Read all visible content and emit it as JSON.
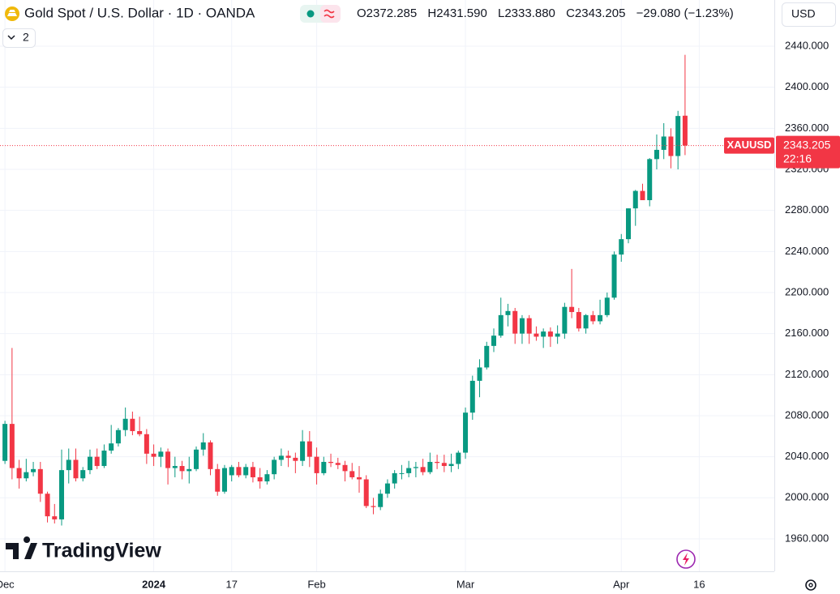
{
  "toolbar": {
    "symbol_title": "Gold Spot / U.S. Dollar · 1D · OANDA",
    "open": "O2372.285",
    "high": "H2431.590",
    "low": "L2333.880",
    "close": "C2343.205",
    "change": "−29.080 (−1.23%)",
    "indicators_count": "2",
    "currency": "USD"
  },
  "chart_data": {
    "type": "candlestick",
    "open": [
      2036,
      2072,
      2029,
      2019,
      2025,
      2028,
      2004,
      1982,
      1979,
      2027,
      2037,
      2019,
      2027,
      2040,
      2031,
      2046,
      2053,
      2066,
      2077,
      2065,
      2062,
      2043,
      2040,
      2045,
      2029,
      2031,
      2026,
      2028,
      2047,
      2054,
      2028,
      2006,
      2022,
      2030,
      2022,
      2030,
      2020,
      2016,
      2023,
      2037,
      2041,
      2039,
      2036,
      2055,
      2040,
      2024,
      2035,
      2034,
      2032,
      2026,
      2020,
      2018,
      1992,
      1991,
      2004,
      2014,
      2024,
      2024,
      2029,
      2030,
      2025,
      2035,
      2034,
      2031,
      2033,
      2044,
      2083,
      2114,
      2127,
      2148,
      2158,
      2178,
      2182,
      2160,
      2175,
      2160,
      2157,
      2162,
      2157,
      2160,
      2186,
      2181,
      2165,
      2178,
      2172,
      2178,
      2195,
      2237,
      2252,
      2282,
      2299,
      2290,
      2330,
      2339,
      2352,
      2333,
      2372.285
    ],
    "high": [
      2075,
      2146,
      2037,
      2038,
      2035,
      2035,
      2006,
      1994,
      2047,
      2048,
      2048,
      2030,
      2047,
      2048,
      2052,
      2071,
      2068,
      2088,
      2084,
      2079,
      2067,
      2052,
      2049,
      2048,
      2040,
      2036,
      2040,
      2050,
      2063,
      2056,
      2033,
      2032,
      2032,
      2035,
      2033,
      2035,
      2029,
      2027,
      2040,
      2048,
      2046,
      2044,
      2066,
      2065,
      2049,
      2040,
      2043,
      2039,
      2036,
      2034,
      2031,
      2022,
      2000,
      2008,
      2018,
      2027,
      2032,
      2036,
      2035,
      2038,
      2044,
      2042,
      2042,
      2043,
      2046,
      2088,
      2119,
      2135,
      2152,
      2165,
      2195,
      2189,
      2185,
      2178,
      2178,
      2167,
      2165,
      2166,
      2168,
      2190,
      2223,
      2185,
      2179,
      2182,
      2193,
      2200,
      2240,
      2257,
      2282,
      2300,
      2306,
      2331,
      2354,
      2365,
      2360,
      2377,
      2431.59
    ],
    "low": [
      2033,
      2018,
      2009,
      2016,
      2021,
      1996,
      1976,
      1975,
      1973,
      2014,
      2016,
      2016,
      2023,
      2028,
      2029,
      2043,
      2050,
      2060,
      2061,
      2060,
      2033,
      2031,
      2030,
      2013,
      2020,
      2018,
      2014,
      2026,
      2041,
      2022,
      2002,
      2004,
      2016,
      2020,
      2019,
      2015,
      2009,
      2013,
      2018,
      2031,
      2030,
      2024,
      2031,
      2030,
      2013,
      2022,
      2030,
      2028,
      2016,
      2018,
      2005,
      1990,
      1984,
      1988,
      2000,
      2009,
      2018,
      2020,
      2020,
      2022,
      2023,
      2028,
      2025,
      2025,
      2028,
      2038,
      2076,
      2098,
      2125,
      2142,
      2156,
      2167,
      2150,
      2150,
      2150,
      2153,
      2146,
      2147,
      2150,
      2155,
      2175,
      2162,
      2160,
      2169,
      2169,
      2176,
      2193,
      2230,
      2248,
      2265,
      2290,
      2284,
      2320,
      2330,
      2321,
      2320,
      2333.88
    ],
    "close": [
      2072,
      2029,
      2019,
      2025,
      2028,
      2004,
      1982,
      1979,
      2027,
      2037,
      2019,
      2027,
      2040,
      2031,
      2046,
      2053,
      2066,
      2077,
      2065,
      2062,
      2043,
      2040,
      2045,
      2029,
      2031,
      2026,
      2028,
      2047,
      2054,
      2028,
      2006,
      2029,
      2030,
      2022,
      2030,
      2020,
      2016,
      2023,
      2037,
      2041,
      2039,
      2036,
      2055,
      2040,
      2024,
      2035,
      2034,
      2032,
      2026,
      2020,
      2018,
      1992,
      1991,
      2004,
      2014,
      2024,
      2024,
      2029,
      2030,
      2025,
      2035,
      2034,
      2031,
      2033,
      2044,
      2083,
      2114,
      2127,
      2148,
      2158,
      2178,
      2182,
      2160,
      2175,
      2160,
      2157,
      2162,
      2157,
      2160,
      2186,
      2181,
      2165,
      2178,
      2172,
      2178,
      2195,
      2237,
      2252,
      2282,
      2299,
      2290,
      2330,
      2339,
      2352,
      2333,
      2372,
      2343.205
    ],
    "up_color": "#089981",
    "down_color": "#f23645",
    "xlim": [
      -0.7,
      108.6
    ],
    "xticks": [
      {
        "value": 0,
        "label": "Dec"
      },
      {
        "value": 21,
        "label": "2024"
      },
      {
        "value": 32,
        "label": "17"
      },
      {
        "value": 44,
        "label": "Feb"
      },
      {
        "value": 65,
        "label": "Mar"
      },
      {
        "value": 87,
        "label": "Apr"
      },
      {
        "value": 98,
        "label": "16"
      }
    ],
    "ylim": [
      1928.4,
      2485
    ],
    "yticks": [
      {
        "value": 1960,
        "label": "1960.000"
      },
      {
        "value": 2000,
        "label": "2000.000"
      },
      {
        "value": 2040,
        "label": "2040.000"
      },
      {
        "value": 2080,
        "label": "2080.000"
      },
      {
        "value": 2120,
        "label": "2120.000"
      },
      {
        "value": 2160,
        "label": "2160.000"
      },
      {
        "value": 2200,
        "label": "2200.000"
      },
      {
        "value": 2240,
        "label": "2240.000"
      },
      {
        "value": 2280,
        "label": "2280.000"
      },
      {
        "value": 2320,
        "label": "2320.000"
      },
      {
        "value": 2360,
        "label": "2360.000"
      },
      {
        "value": 2400,
        "label": "2400.000"
      },
      {
        "value": 2440,
        "label": "2440.000"
      }
    ],
    "grid": true,
    "last_price": {
      "symbol": "XAUUSD",
      "countdown": "22:16"
    }
  },
  "watermark": "TradingView"
}
